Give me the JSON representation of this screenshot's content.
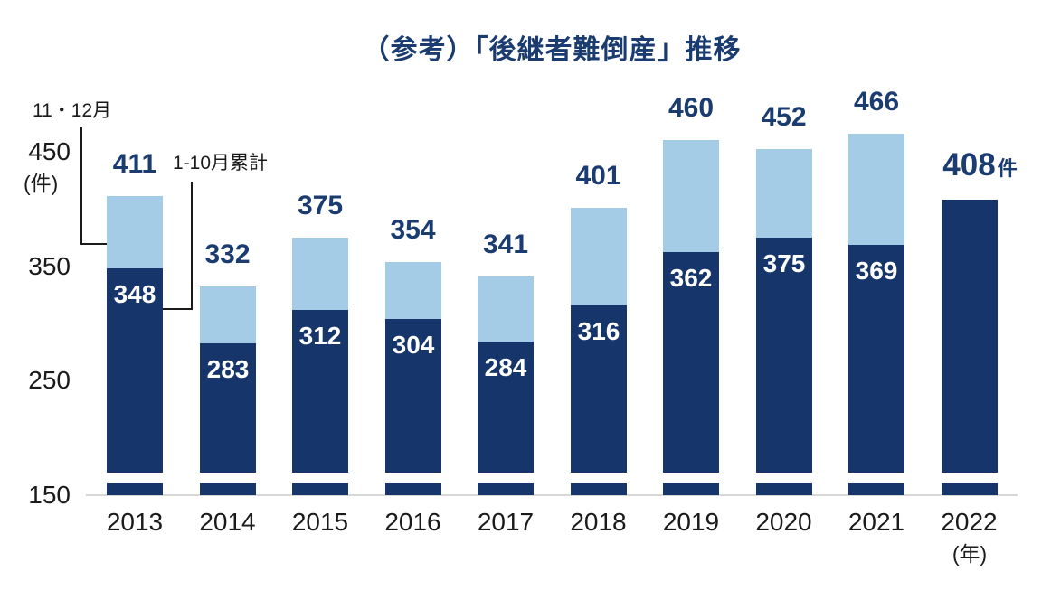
{
  "legend": {
    "nov_dec_label": "11・12月",
    "jan_oct_label": "1-10月累計"
  },
  "y_axis": {
    "unit": "(件)",
    "ticks": [
      450,
      350,
      250,
      150
    ]
  },
  "x_axis": {
    "unit": "(年)"
  },
  "colors": {
    "dark_navy_bar": "#16356B",
    "light_blue_bar": "#A5CCE6",
    "title_and_value_text": "#1B3C70",
    "axis_text": "#1A1A1A",
    "axis_line": "#D8D8D8",
    "inside_bar_text": "#FFFFFF"
  },
  "chart_data": {
    "type": "bar",
    "stacked": true,
    "title": "（参考）「後継者難倒産」推移",
    "categories": [
      "2013",
      "2014",
      "2015",
      "2016",
      "2017",
      "2018",
      "2019",
      "2020",
      "2021",
      "2022"
    ],
    "series": [
      {
        "name": "1-10月累計",
        "color": "#16356B",
        "values": [
          348,
          283,
          312,
          304,
          284,
          316,
          362,
          375,
          369,
          408
        ]
      },
      {
        "name": "11・12月",
        "color": "#A5CCE6",
        "values": [
          63,
          49,
          63,
          50,
          57,
          85,
          98,
          77,
          97,
          0
        ]
      }
    ],
    "totals": [
      411,
      332,
      375,
      354,
      341,
      401,
      460,
      452,
      466,
      408
    ],
    "total_label_suffixes": [
      "",
      "",
      "",
      "",
      "",
      "",
      "",
      "",
      "",
      "件"
    ],
    "inside_labels_shown": [
      348,
      283,
      312,
      304,
      284,
      316,
      362,
      375,
      369,
      null
    ],
    "ylabel": "(件)",
    "xlabel": "(年)",
    "ylim": [
      150,
      470
    ],
    "yticks": [
      450,
      350,
      250,
      150
    ],
    "grid": false,
    "axis_break_at_bottom": true,
    "legend_position": "callout-annotations-top-left"
  }
}
